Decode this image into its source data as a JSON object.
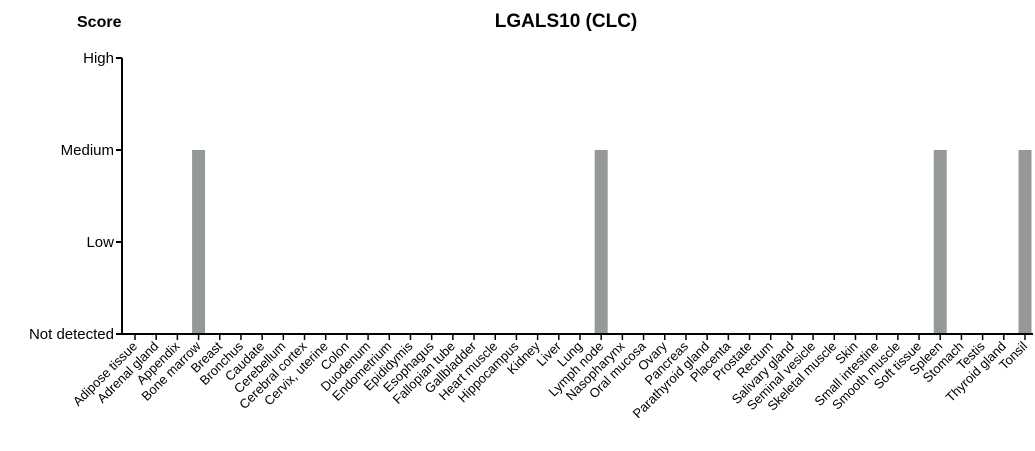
{
  "chart_data": {
    "type": "bar",
    "title": "LGALS10 (CLC)",
    "ylabel": "Score",
    "y_levels": [
      "Not detected",
      "Low",
      "Medium",
      "High"
    ],
    "ylim": [
      0,
      3
    ],
    "categories": [
      "Adipose tissue",
      "Adrenal gland",
      "Appendix",
      "Bone marrow",
      "Breast",
      "Bronchus",
      "Caudate",
      "Cerebellum",
      "Cerebral cortex",
      "Cervix, uterine",
      "Colon",
      "Duodenum",
      "Endometrium",
      "Epididymis",
      "Esophagus",
      "Fallopian tube",
      "Gallbladder",
      "Heart muscle",
      "Hippocampus",
      "Kidney",
      "Liver",
      "Lung",
      "Lymph node",
      "Nasopharynx",
      "Oral mucosa",
      "Ovary",
      "Pancreas",
      "Parathyroid gland",
      "Placenta",
      "Prostate",
      "Rectum",
      "Salivary gland",
      "Seminal vesicle",
      "Skeletal muscle",
      "Skin",
      "Small intestine",
      "Smooth muscle",
      "Soft tissue",
      "Spleen",
      "Stomach",
      "Testis",
      "Thyroid gland",
      "Tonsil"
    ],
    "values": [
      0,
      0,
      0,
      2,
      0,
      0,
      0,
      0,
      0,
      0,
      0,
      0,
      0,
      0,
      0,
      0,
      0,
      0,
      0,
      0,
      0,
      0,
      2,
      0,
      0,
      0,
      0,
      0,
      0,
      0,
      0,
      0,
      0,
      0,
      0,
      0,
      0,
      0,
      2,
      0,
      0,
      0,
      2
    ],
    "bar_color": "#959a99",
    "grid": false,
    "legend": "none"
  }
}
